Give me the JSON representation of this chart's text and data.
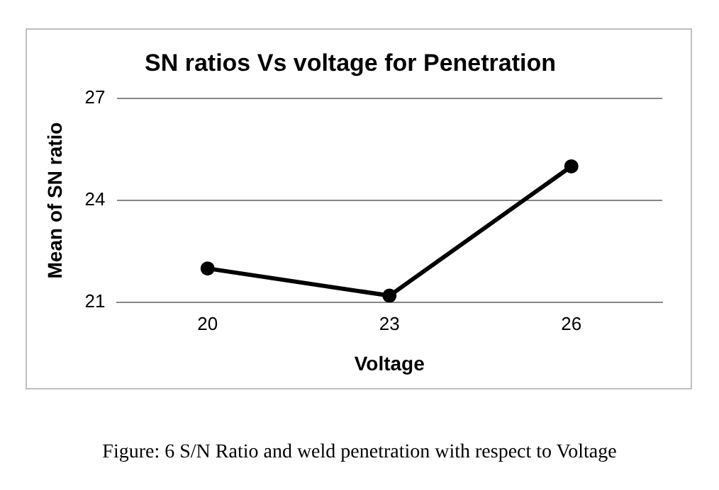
{
  "chart_data": {
    "type": "line",
    "title": "SN ratios Vs voltage for Penetration",
    "xlabel": "Voltage",
    "ylabel": "Mean of SN ratio",
    "categories": [
      "20",
      "23",
      "26"
    ],
    "series": [
      {
        "color": "#000000",
        "values": [
          22.0,
          21.2,
          25.0
        ]
      }
    ],
    "ylim": [
      21,
      27
    ],
    "yticks": [
      21,
      24,
      27
    ],
    "grid": "y",
    "marker": "circle",
    "line_style": "solid",
    "legend": false,
    "annotations": [
      "Figure: 6 S/N Ratio and weld penetration with respect to Voltage"
    ]
  }
}
